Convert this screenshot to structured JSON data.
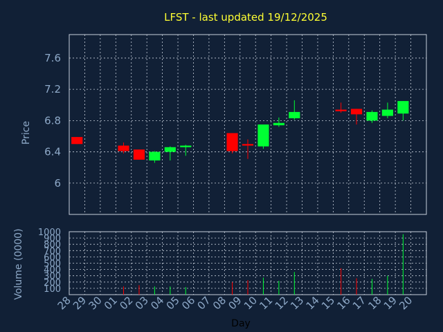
{
  "chart_data": {
    "type": "candlestick",
    "title": "LFST - last updated 19/12/2025",
    "price_panel": {
      "ylabel": "Price",
      "yticks": [
        6,
        6.4,
        6.8,
        7.2,
        7.6
      ],
      "ylim": [
        5.6,
        7.9
      ],
      "grid": true
    },
    "volume_panel": {
      "ylabel": "Volume (0000)",
      "yticks": [
        100,
        200,
        300,
        400,
        500,
        600,
        700,
        800,
        900,
        1000
      ],
      "ylim": [
        0,
        1000
      ],
      "grid": true
    },
    "xlabel": "Day",
    "categories": [
      "28",
      "29",
      "30",
      "01",
      "02",
      "03",
      "04",
      "05",
      "06",
      "07",
      "08",
      "09",
      "10",
      "11",
      "12",
      "13",
      "14",
      "15",
      "16",
      "17",
      "18",
      "19",
      "20"
    ],
    "candles": [
      {
        "day": "28",
        "open": 6.59,
        "close": 6.5,
        "high": 6.59,
        "low": 6.5,
        "volume": 0
      },
      {
        "day": "01",
        "open": 6.48,
        "close": 6.41,
        "high": 6.52,
        "low": 6.38,
        "volume": 130
      },
      {
        "day": "02",
        "open": 6.43,
        "close": 6.3,
        "high": 6.43,
        "low": 6.3,
        "volume": 150
      },
      {
        "day": "03",
        "open": 6.29,
        "close": 6.4,
        "high": 6.41,
        "low": 6.26,
        "volume": 130
      },
      {
        "day": "04",
        "open": 6.4,
        "close": 6.46,
        "high": 6.47,
        "low": 6.29,
        "volume": 130
      },
      {
        "day": "05",
        "open": 6.46,
        "close": 6.48,
        "high": 6.49,
        "low": 6.35,
        "volume": 120
      },
      {
        "day": "08",
        "open": 6.64,
        "close": 6.41,
        "high": 6.64,
        "low": 6.38,
        "volume": 200
      },
      {
        "day": "09",
        "open": 6.5,
        "close": 6.48,
        "high": 6.56,
        "low": 6.31,
        "volume": 230
      },
      {
        "day": "10",
        "open": 6.47,
        "close": 6.75,
        "high": 6.75,
        "low": 6.44,
        "volume": 270
      },
      {
        "day": "11",
        "open": 6.74,
        "close": 6.77,
        "high": 6.84,
        "low": 6.72,
        "volume": 220
      },
      {
        "day": "12",
        "open": 6.83,
        "close": 6.91,
        "high": 7.06,
        "low": 6.81,
        "volume": 360
      },
      {
        "day": "15",
        "open": 6.94,
        "close": 6.92,
        "high": 7.03,
        "low": 6.9,
        "volume": 420
      },
      {
        "day": "16",
        "open": 6.95,
        "close": 6.88,
        "high": 6.95,
        "low": 6.75,
        "volume": 260
      },
      {
        "day": "17",
        "open": 6.8,
        "close": 6.91,
        "high": 6.93,
        "low": 6.77,
        "volume": 250
      },
      {
        "day": "18",
        "open": 6.86,
        "close": 6.94,
        "high": 7.03,
        "low": 6.83,
        "volume": 300
      },
      {
        "day": "19",
        "open": 6.89,
        "close": 7.05,
        "high": 7.05,
        "low": 6.8,
        "volume": 960
      }
    ],
    "colors": {
      "background": "#112036",
      "grid": "#c8d0dc",
      "up": "#00ff33",
      "down": "#ff0000",
      "title": "#ffff33",
      "text": "#8ea9c8",
      "xlabel": "#000000"
    }
  }
}
